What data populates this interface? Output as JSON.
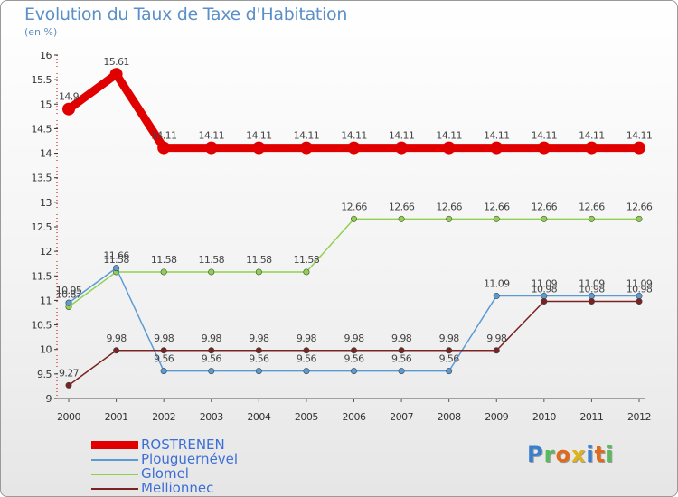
{
  "title": "Evolution du Taux de Taxe d'Habitation",
  "subtitle": "(en %)",
  "logo": {
    "text": "Proxiti",
    "colors": [
      "#3a7fcf",
      "#5cb85c",
      "#e06a1b",
      "#e0b21b",
      "#3a7fcf",
      "#e06a1b",
      "#5cb85c"
    ]
  },
  "chart_data": {
    "type": "line",
    "title": "Evolution du Taux de Taxe d'Habitation",
    "ylabel": "(en %)",
    "xlabel": "",
    "x": [
      "2000",
      "2001",
      "2002",
      "2003",
      "2004",
      "2005",
      "2006",
      "2007",
      "2008",
      "2009",
      "2010",
      "2011",
      "2012"
    ],
    "ylim": [
      9,
      16
    ],
    "yticks": [
      "9",
      "9.5",
      "10",
      "10.5",
      "11",
      "11.5",
      "12",
      "12.5",
      "13",
      "13.5",
      "14",
      "14.5",
      "15",
      "15.5",
      "16"
    ],
    "legend_position": "bottom-left",
    "series": [
      {
        "name": "ROSTRENEN",
        "color": "#e00000",
        "values": [
          14.9,
          15.61,
          14.11,
          14.11,
          14.11,
          14.11,
          14.11,
          14.11,
          14.11,
          14.11,
          14.11,
          14.11,
          14.11
        ],
        "labels": [
          "14.9",
          "15.61",
          "14.11",
          "14.11",
          "14.11",
          "14.11",
          "14.11",
          "14.11",
          "14.11",
          "14.11",
          "14.11",
          "14.11",
          "14.11"
        ]
      },
      {
        "name": "Plouguernével",
        "color": "#5b9bd5",
        "values": [
          10.95,
          11.66,
          9.56,
          9.56,
          9.56,
          9.56,
          9.56,
          9.56,
          9.56,
          11.09,
          11.09,
          11.09,
          11.09
        ],
        "labels": [
          "10.95",
          "11.66",
          "9.56",
          "9.56",
          "9.56",
          "9.56",
          "9.56",
          "9.56",
          "9.56",
          "11.09",
          "11.09",
          "11.09",
          "11.09"
        ]
      },
      {
        "name": "Glomel",
        "color": "#8fd14f",
        "values": [
          10.87,
          11.58,
          11.58,
          11.58,
          11.58,
          11.58,
          12.66,
          12.66,
          12.66,
          12.66,
          12.66,
          12.66,
          12.66
        ],
        "labels": [
          "10.87",
          "11.58",
          "11.58",
          "11.58",
          "11.58",
          "11.58",
          "12.66",
          "12.66",
          "12.66",
          "12.66",
          "12.66",
          "12.66",
          "12.66"
        ]
      },
      {
        "name": "Mellionnec",
        "color": "#7a2323",
        "values": [
          9.27,
          9.98,
          9.98,
          9.98,
          9.98,
          9.98,
          9.98,
          9.98,
          9.98,
          9.98,
          10.98,
          10.98,
          10.98
        ],
        "labels": [
          "9.27",
          "9.98",
          "9.98",
          "9.98",
          "9.98",
          "9.98",
          "9.98",
          "9.98",
          "9.98",
          "9.98",
          "10.98",
          "10.98",
          "10.98"
        ]
      }
    ]
  }
}
